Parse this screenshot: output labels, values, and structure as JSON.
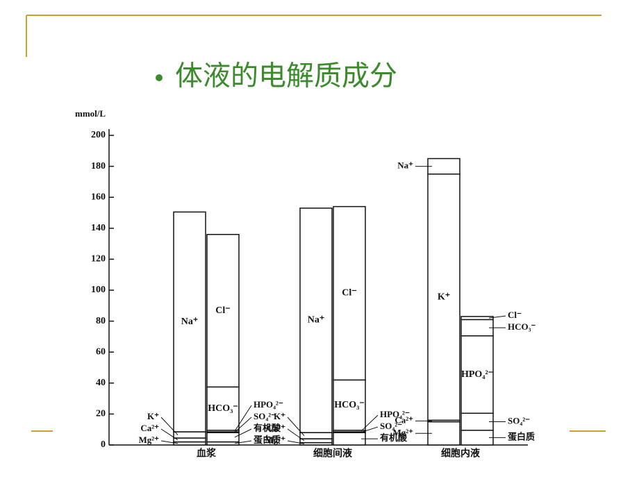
{
  "title": "体液的电解质成分",
  "chart_data": {
    "type": "paired_stacked_bar",
    "y_label": "mmol/L",
    "categories": [
      "血浆",
      "细胞间液",
      "细胞内液"
    ],
    "ylim": [
      0,
      200
    ],
    "yticks": [
      0,
      20,
      40,
      60,
      80,
      100,
      120,
      140,
      160,
      180,
      200
    ],
    "cations": [
      {
        "name": "Mg²⁺",
        "values": [
          2,
          1.5,
          15
        ]
      },
      {
        "name": "Ca²⁺",
        "values": [
          2.5,
          2.5,
          1
        ]
      },
      {
        "name": "K⁺",
        "values": [
          4,
          4,
          159
        ]
      },
      {
        "name": "Na⁺",
        "values": [
          142,
          145,
          10
        ]
      }
    ],
    "anions": [
      {
        "name": "蛋白质",
        "values": [
          2,
          null,
          9.5
        ]
      },
      {
        "name": "有机酸",
        "values": [
          6,
          8,
          null
        ]
      },
      {
        "name": "SO₄²⁻",
        "values": [
          0.5,
          0.5,
          11
        ]
      },
      {
        "name": "HPO₄²⁻",
        "values": [
          1,
          1,
          50
        ]
      },
      {
        "name": "HCO₃⁻",
        "values": [
          28,
          32.5,
          10.5
        ]
      },
      {
        "name": "Cl⁻",
        "values": [
          98.5,
          112,
          2
        ]
      }
    ]
  }
}
